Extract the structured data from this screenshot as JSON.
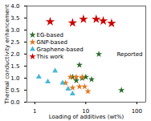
{
  "chart_data": {
    "type": "scatter",
    "xlabel": "Loading of additives (wt%)",
    "ylabel": "Thermal conductivity enhancement",
    "log": "x",
    "xlim": [
      0.7,
      150
    ],
    "xticks": [
      1,
      10,
      100
    ],
    "ylim": [
      0.0,
      4.0
    ],
    "yticks": [
      {
        "value": 0,
        "label": "0.0"
      },
      0.5,
      {
        "value": 1,
        "label": "1.0"
      },
      1.5,
      {
        "value": 2,
        "label": "2.0"
      },
      2.5,
      {
        "value": 3,
        "label": "3.0"
      },
      3.5,
      {
        "value": 4,
        "label": "4.0"
      }
    ],
    "grid": false,
    "legend": "left",
    "annotations": [
      "Reported"
    ],
    "series": [
      {
        "name": "EG-based",
        "color": "#2a6c2a",
        "marker": "star",
        "x": [
          5.5,
          6.5,
          7.5,
          8.5,
          10.0,
          13.0,
          18.0,
          50.0
        ],
        "values": [
          1.05,
          0.9,
          1.55,
          1.0,
          1.05,
          0.95,
          2.0,
          0.5
        ]
      },
      {
        "name": "GNP-based",
        "color": "#e07820",
        "marker": "star",
        "x": [
          4.0,
          5.0,
          5.5,
          6.5,
          7.5,
          8.5,
          9.5,
          11.0
        ],
        "values": [
          0.8,
          1.05,
          0.6,
          1.05,
          0.65,
          1.05,
          0.65,
          0.45
        ]
      },
      {
        "name": "Graphene-based",
        "color": "#48b8d8",
        "marker": "triangle",
        "x": [
          1.2,
          1.8,
          2.5,
          3.5,
          4.5,
          5.5
        ],
        "values": [
          1.05,
          0.85,
          1.3,
          0.8,
          0.55,
          0.35
        ]
      },
      {
        "name": "This work",
        "color": "#cc0000",
        "marker": "star",
        "x": [
          2.0,
          5.5,
          9.0,
          16.0,
          22.0,
          32.0
        ],
        "values": [
          3.35,
          3.3,
          3.45,
          3.45,
          3.38,
          3.28
        ]
      }
    ]
  }
}
